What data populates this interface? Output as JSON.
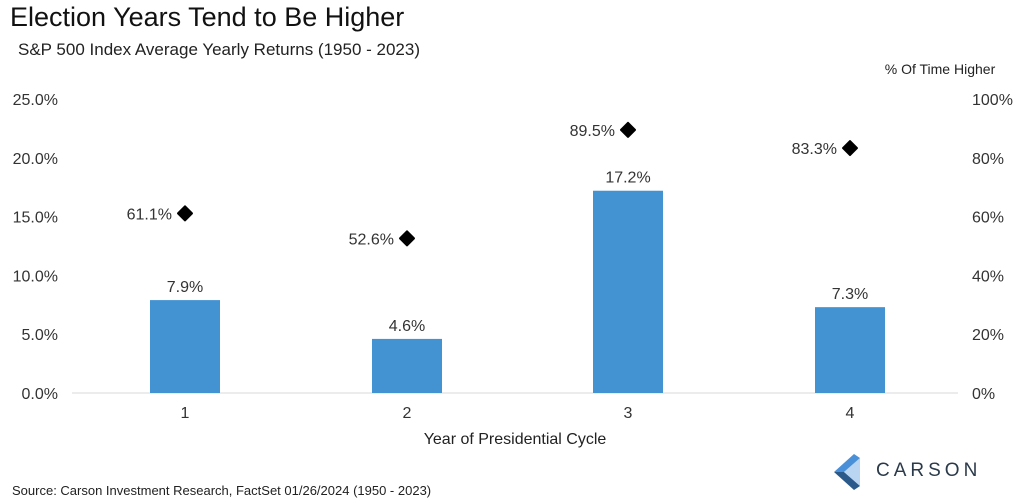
{
  "title": "Election Years Tend to Be Higher",
  "subtitle": "S&P 500 Index Average Yearly Returns (1950 - 2023)",
  "source": "Source: Carson Investment Research, FactSet 01/26/2024 (1950 - 2023)",
  "logo": {
    "text": "CARSON",
    "colors": [
      "#4a90d9",
      "#2b5a8a"
    ]
  },
  "colors": {
    "bar": "#4393d3",
    "marker": "#000000",
    "text": "#333333"
  },
  "chart_data": {
    "type": "bar",
    "xlabel": "Year of Presidential Cycle",
    "ylabel": "",
    "y2label": "% Of Time Higher",
    "categories": [
      "1",
      "2",
      "3",
      "4"
    ],
    "ylim": [
      0,
      25
    ],
    "y2lim": [
      0,
      100
    ],
    "yticks": [
      "0.0%",
      "5.0%",
      "10.0%",
      "15.0%",
      "20.0%",
      "25.0%"
    ],
    "y2ticks": [
      "0%",
      "20%",
      "40%",
      "60%",
      "80%",
      "100%"
    ],
    "grid": false,
    "series": [
      {
        "type": "bar",
        "axis": "left",
        "values": [
          7.9,
          4.6,
          17.2,
          7.3
        ],
        "labels": [
          "7.9%",
          "4.6%",
          "17.2%",
          "7.3%"
        ]
      },
      {
        "type": "scatter",
        "axis": "right",
        "marker": "diamond",
        "values": [
          61.1,
          52.6,
          89.5,
          83.3
        ],
        "labels": [
          "61.1%",
          "52.6%",
          "89.5%",
          "83.3%"
        ]
      }
    ]
  }
}
